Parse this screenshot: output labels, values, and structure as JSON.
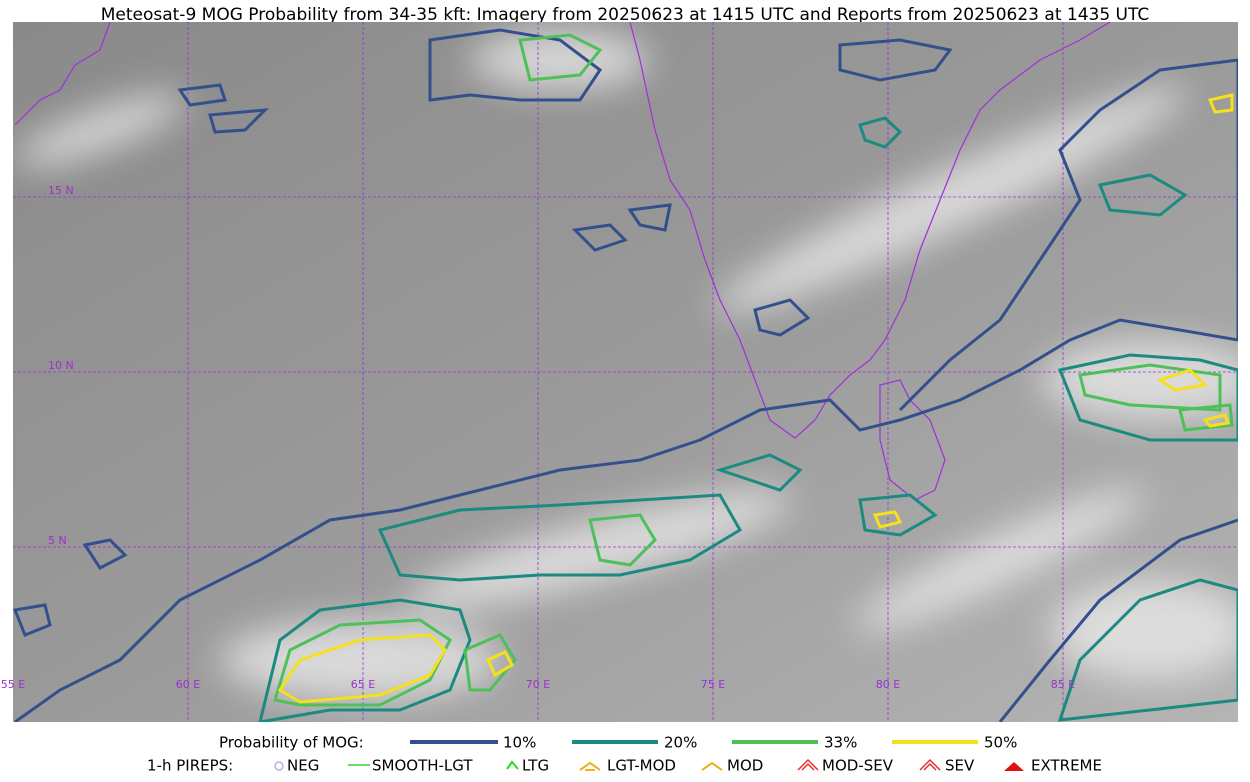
{
  "header": {
    "title": "Meteosat-9 MOG Probability from 34-35 kft: Imagery from 20250623 at 1415 UTC and Reports from 20250623 at 1435 UTC"
  },
  "map": {
    "latitude_labels": [
      "15 N",
      "10 N",
      "5 N"
    ],
    "longitude_labels": [
      "55 E",
      "60 E",
      "65 E",
      "70 E",
      "75 E",
      "80 E",
      "85 E"
    ]
  },
  "legend": {
    "probability_title": "Probability of MOG:",
    "probability_levels": [
      "10%",
      "20%",
      "33%",
      "50%"
    ],
    "pireps_title": "1-h PIREPS:",
    "pireps": [
      "NEG",
      "SMOOTH-LGT",
      "LTG",
      "LGT-MOD",
      "MOD",
      "MOD-SEV",
      "SEV",
      "EXTREME"
    ]
  }
}
